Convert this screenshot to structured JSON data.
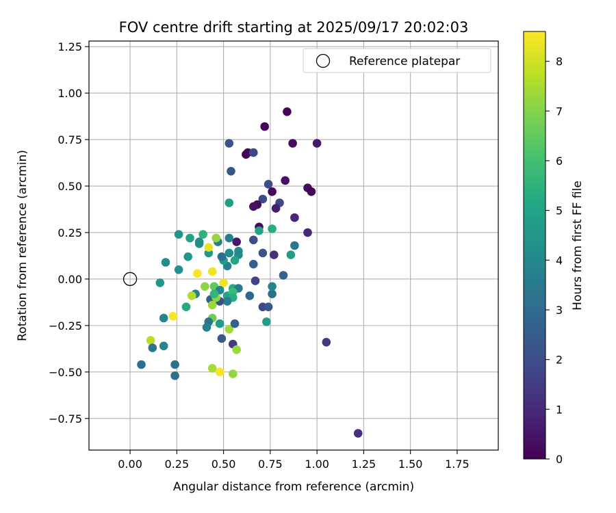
{
  "chart_data": {
    "type": "scatter",
    "title": "FOV centre drift starting at 2025/09/17 20:02:03",
    "xlabel": "Angular distance from reference (arcmin)",
    "ylabel": "Rotation from reference (arcmin)",
    "xlim": [
      -0.22,
      1.97
    ],
    "ylim": [
      -0.92,
      1.28
    ],
    "x_ticks": [
      0.0,
      0.25,
      0.5,
      0.75,
      1.0,
      1.25,
      1.5,
      1.75
    ],
    "x_tick_labels": [
      "0.00",
      "0.25",
      "0.50",
      "0.75",
      "1.00",
      "1.25",
      "1.50",
      "1.75"
    ],
    "y_ticks": [
      -0.75,
      -0.5,
      -0.25,
      0.0,
      0.25,
      0.5,
      0.75,
      1.0,
      1.25
    ],
    "y_tick_labels": [
      "−0.75",
      "−0.50",
      "−0.25",
      "0.00",
      "0.25",
      "0.50",
      "0.75",
      "1.00",
      "1.25"
    ],
    "grid": true,
    "legend": {
      "placement": "top-right",
      "entries": [
        "Reference platepar"
      ]
    },
    "reference_point": {
      "label": "Reference platepar",
      "x": 0.0,
      "y": 0.0
    },
    "colorbar": {
      "label": "Hours from first FF file",
      "colormap": "viridis",
      "range": [
        0,
        8.6
      ],
      "ticks": [
        0,
        1,
        2,
        3,
        4,
        5,
        6,
        7,
        8
      ],
      "tick_labels": [
        "0",
        "1",
        "2",
        "3",
        "4",
        "5",
        "6",
        "7",
        "8"
      ]
    },
    "series": [
      {
        "points": [
          [
            0.84,
            0.9,
            0.1
          ],
          [
            0.72,
            0.82,
            0.1
          ],
          [
            0.63,
            0.68,
            0.2
          ],
          [
            0.62,
            0.67,
            0.1
          ],
          [
            0.87,
            0.73,
            0.3
          ],
          [
            1.0,
            0.73,
            0.6
          ],
          [
            0.66,
            0.68,
            1.8
          ],
          [
            0.53,
            0.73,
            2.2
          ],
          [
            0.54,
            0.58,
            2.3
          ],
          [
            0.83,
            0.53,
            0.4
          ],
          [
            0.95,
            0.49,
            0.3
          ],
          [
            0.97,
            0.47,
            0.1
          ],
          [
            0.76,
            0.47,
            0.2
          ],
          [
            0.74,
            0.51,
            2.0
          ],
          [
            0.8,
            0.41,
            1.8
          ],
          [
            0.71,
            0.43,
            1.9
          ],
          [
            0.78,
            0.38,
            0.7
          ],
          [
            0.68,
            0.4,
            0.2
          ],
          [
            0.66,
            0.39,
            0.4
          ],
          [
            0.53,
            0.41,
            4.8
          ],
          [
            0.88,
            0.33,
            1.0
          ],
          [
            0.95,
            0.25,
            1.0
          ],
          [
            0.69,
            0.28,
            0.3
          ],
          [
            0.69,
            0.26,
            5.0
          ],
          [
            0.76,
            0.27,
            5.3
          ],
          [
            0.57,
            0.2,
            0.6
          ],
          [
            0.53,
            0.22,
            3.6
          ],
          [
            0.66,
            0.21,
            2.0
          ],
          [
            0.88,
            0.18,
            3.4
          ],
          [
            0.86,
            0.13,
            4.8
          ],
          [
            0.77,
            0.13,
            1.2
          ],
          [
            0.71,
            0.14,
            2.2
          ],
          [
            0.82,
            0.02,
            2.7
          ],
          [
            0.67,
            -0.01,
            1.7
          ],
          [
            0.66,
            0.08,
            2.6
          ],
          [
            0.58,
            0.15,
            4.2
          ],
          [
            0.58,
            0.13,
            4.0
          ],
          [
            0.56,
            0.1,
            5.1
          ],
          [
            0.53,
            0.14,
            4.1
          ],
          [
            0.52,
            0.07,
            3.7
          ],
          [
            0.5,
            0.1,
            4.8
          ],
          [
            0.49,
            0.12,
            3.2
          ],
          [
            0.47,
            0.2,
            3.6
          ],
          [
            0.46,
            0.22,
            7.2
          ],
          [
            0.42,
            0.14,
            4.6
          ],
          [
            0.42,
            0.17,
            8.3
          ],
          [
            0.39,
            0.24,
            5.5
          ],
          [
            0.37,
            0.2,
            4.0
          ],
          [
            0.37,
            0.19,
            4.2
          ],
          [
            0.32,
            0.22,
            4.9
          ],
          [
            0.26,
            0.24,
            4.4
          ],
          [
            0.31,
            0.12,
            4.5
          ],
          [
            0.26,
            0.05,
            4.3
          ],
          [
            0.19,
            0.09,
            4.1
          ],
          [
            0.16,
            -0.02,
            4.5
          ],
          [
            0.36,
            0.03,
            8.5
          ],
          [
            0.44,
            0.04,
            8.4
          ],
          [
            0.4,
            -0.04,
            7.1
          ],
          [
            0.45,
            -0.04,
            6.5
          ],
          [
            0.5,
            -0.02,
            8.4
          ],
          [
            0.48,
            -0.06,
            4.0
          ],
          [
            0.52,
            -0.09,
            5.0
          ],
          [
            0.55,
            -0.05,
            5.2
          ],
          [
            0.58,
            -0.05,
            3.5
          ],
          [
            0.55,
            -0.07,
            5.8
          ],
          [
            0.55,
            -0.1,
            5.3
          ],
          [
            0.52,
            -0.12,
            3.7
          ],
          [
            0.48,
            -0.12,
            2.1
          ],
          [
            0.43,
            -0.11,
            2.6
          ],
          [
            0.46,
            -0.1,
            7.1
          ],
          [
            0.45,
            -0.08,
            5.6
          ],
          [
            0.35,
            -0.08,
            3.7
          ],
          [
            0.33,
            -0.09,
            7.6
          ],
          [
            0.3,
            -0.15,
            5.2
          ],
          [
            0.44,
            -0.14,
            7.3
          ],
          [
            0.44,
            -0.21,
            6.7
          ],
          [
            0.48,
            -0.24,
            4.7
          ],
          [
            0.42,
            -0.23,
            3.3
          ],
          [
            0.41,
            -0.26,
            3.7
          ],
          [
            0.49,
            -0.32,
            2.4
          ],
          [
            0.53,
            -0.27,
            7.4
          ],
          [
            0.56,
            -0.24,
            2.6
          ],
          [
            0.55,
            -0.35,
            1.5
          ],
          [
            0.57,
            -0.38,
            7.3
          ],
          [
            0.64,
            -0.09,
            2.8
          ],
          [
            0.71,
            -0.15,
            1.8
          ],
          [
            0.74,
            -0.15,
            2.3
          ],
          [
            0.76,
            -0.08,
            3.2
          ],
          [
            0.76,
            -0.04,
            3.9
          ],
          [
            0.73,
            -0.23,
            4.8
          ],
          [
            0.23,
            -0.2,
            8.5
          ],
          [
            0.18,
            -0.21,
            3.9
          ],
          [
            0.18,
            -0.36,
            3.9
          ],
          [
            0.11,
            -0.33,
            7.7
          ],
          [
            0.12,
            -0.37,
            3.4
          ],
          [
            0.06,
            -0.46,
            3.1
          ],
          [
            0.24,
            -0.46,
            3.2
          ],
          [
            0.24,
            -0.52,
            3.1
          ],
          [
            0.44,
            -0.48,
            7.5
          ],
          [
            0.48,
            -0.5,
            8.5
          ],
          [
            0.55,
            -0.51,
            7.2
          ],
          [
            1.05,
            -0.34,
            1.4
          ],
          [
            1.22,
            -0.83,
            1.2
          ]
        ]
      }
    ]
  }
}
